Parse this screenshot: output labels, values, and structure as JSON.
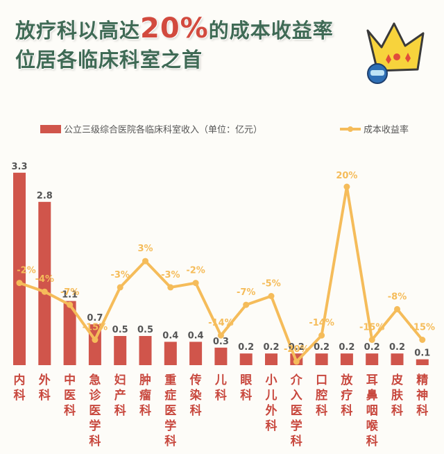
{
  "title": {
    "line1_before": "放疗科以高达",
    "line1_highlight": "20%",
    "line1_after": "的成本收益率",
    "line2": "位居各临床科室之首"
  },
  "colors": {
    "bar": "#d0554b",
    "line": "#f5bc5a",
    "title": "#3f6a55",
    "highlight": "#d24a3e",
    "label": "#555555",
    "category": "#c8483e"
  },
  "icon": "crown-game-controller-icon",
  "chart_data": {
    "type": "bar",
    "categories": [
      "内科",
      "外科",
      "中医科",
      "急诊医学科",
      "妇产科",
      "肿瘤科",
      "重症医学科",
      "传染科",
      "儿科",
      "眼科",
      "小儿外科",
      "介入医学科",
      "口腔科",
      "放疗科",
      "耳鼻咽喉科",
      "皮肤科",
      "精神科"
    ],
    "series": [
      {
        "name": "公立三级综合医院各临床科室收入（单位：亿元）",
        "type": "bar",
        "values": [
          3.3,
          2.8,
          1.1,
          0.7,
          0.5,
          0.5,
          0.4,
          0.4,
          0.3,
          0.2,
          0.2,
          0.2,
          0.2,
          0.2,
          0.2,
          0.2,
          0.1
        ],
        "labels": [
          "3.3",
          "2.8",
          "1.1",
          "0.7",
          "0.5",
          "0.5",
          "0.4",
          "0.4",
          "0.3",
          "0.2",
          "0.2",
          "0.2",
          "0.2",
          "0.2",
          "0.2",
          "0.2",
          "0.1"
        ]
      },
      {
        "name": "成本收益率",
        "type": "line",
        "values": [
          -2,
          -4,
          -7,
          -15,
          -3,
          3,
          -3,
          -2,
          -14,
          -7,
          -5,
          -20,
          -14,
          20,
          -15,
          -8,
          -15
        ],
        "labels": [
          "-2%",
          "-4%",
          "-7%",
          "-15%",
          "-3%",
          "3%",
          "-3%",
          "-2%",
          "-14%",
          "-7%",
          "-5%",
          "-20%",
          "-14%",
          "20%",
          "-15%",
          "-8%",
          "-15%"
        ]
      }
    ],
    "legend_position": "top",
    "grid": false
  }
}
